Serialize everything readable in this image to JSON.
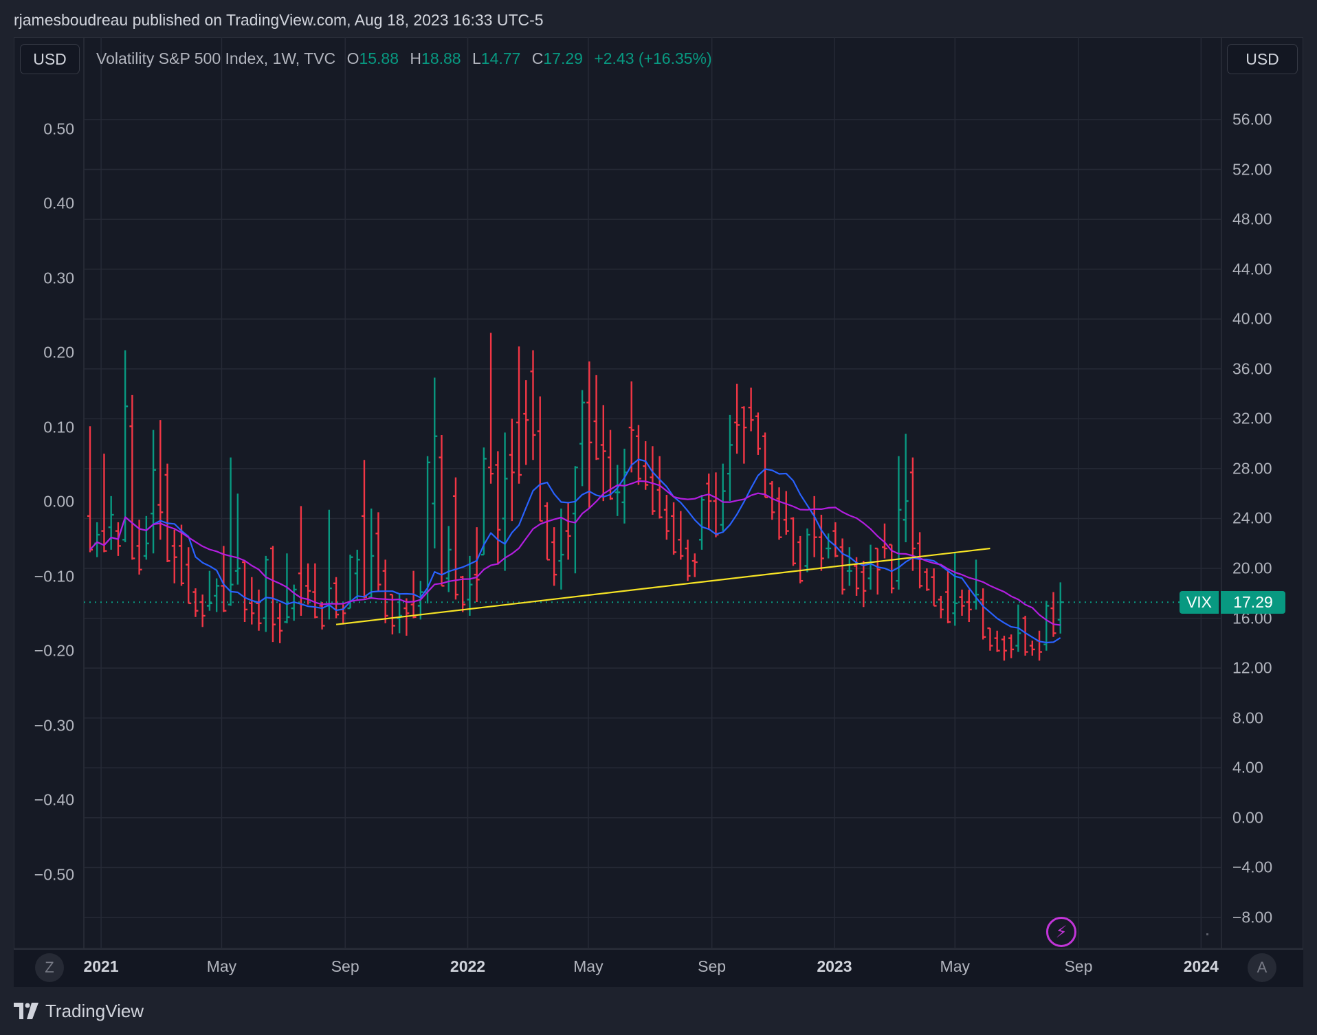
{
  "published": "rjamesboudreau published on TradingView.com, Aug 18, 2023 16:33 UTC-5",
  "currency_left": "USD",
  "currency_right": "USD",
  "legend": {
    "symbol": "Volatility S&P 500 Index, 1W, TVC",
    "o_label": "O",
    "o": "15.88",
    "h_label": "H",
    "h": "18.88",
    "l_label": "L",
    "l": "14.77",
    "c_label": "C",
    "c": "17.29",
    "change": "+2.43 (+16.35%)"
  },
  "last_price_tag": {
    "symbol": "VIX",
    "price": "17.29"
  },
  "buttons": {
    "zoom": "Z",
    "auto": "A"
  },
  "logo": "TradingView",
  "colors": {
    "up": "#089981",
    "down": "#f23645",
    "ma_fast": "#2962ff",
    "ma_slow": "#b31ee0",
    "trendline": "#f7e425",
    "grid": "#262a36"
  },
  "chart_data": {
    "type": "ohlc",
    "title": "Volatility S&P 500 Index, 1W, TVC",
    "interval": "1W",
    "first_bar_date": "2020-12-21",
    "ohlc": [
      [
        24.2,
        31.4,
        21.3,
        21.5
      ],
      [
        22.0,
        23.7,
        20.9,
        22.7
      ],
      [
        23.0,
        29.2,
        21.3,
        21.4
      ],
      [
        23.3,
        25.8,
        21.5,
        24.3
      ],
      [
        23.0,
        23.7,
        21.0,
        21.8
      ],
      [
        22.3,
        37.5,
        22.1,
        33.0
      ],
      [
        31.4,
        33.9,
        20.7,
        20.8
      ],
      [
        21.8,
        23.9,
        19.5,
        19.9
      ],
      [
        21.0,
        24.2,
        20.7,
        22.0
      ],
      [
        24.4,
        31.1,
        21.2,
        27.9
      ],
      [
        25.1,
        31.9,
        22.3,
        24.5
      ],
      [
        27.5,
        28.4,
        20.5,
        20.6
      ],
      [
        21.8,
        23.1,
        18.8,
        20.9
      ],
      [
        21.8,
        23.5,
        18.6,
        18.8
      ],
      [
        20.3,
        21.7,
        17.2,
        17.2
      ],
      [
        18.1,
        18.4,
        16.1,
        16.6
      ],
      [
        17.3,
        17.9,
        15.3,
        16.2
      ],
      [
        17.0,
        19.8,
        16.6,
        17.2
      ],
      [
        17.8,
        19.2,
        16.5,
        18.6
      ],
      [
        18.6,
        21.8,
        16.5,
        16.6
      ],
      [
        17.1,
        28.9,
        17.0,
        18.7
      ],
      [
        19.8,
        26.0,
        18.7,
        20.0
      ],
      [
        20.5,
        20.5,
        15.7,
        16.7
      ],
      [
        17.2,
        19.3,
        15.5,
        16.4
      ],
      [
        17.2,
        18.3,
        15.0,
        15.6
      ],
      [
        16.0,
        21.0,
        14.9,
        20.7
      ],
      [
        21.6,
        21.8,
        14.1,
        15.5
      ],
      [
        16.0,
        17.2,
        14.0,
        15.0
      ],
      [
        15.7,
        21.2,
        15.6,
        16.1
      ],
      [
        16.8,
        18.7,
        15.8,
        18.3
      ],
      [
        19.6,
        25.0,
        16.2,
        17.1
      ],
      [
        18.6,
        20.4,
        17.1,
        18.2
      ],
      [
        18.1,
        20.4,
        16.0,
        16.1
      ],
      [
        17.0,
        17.3,
        15.1,
        15.4
      ],
      [
        17.0,
        24.7,
        15.9,
        18.4
      ],
      [
        18.8,
        19.3,
        16.0,
        16.3
      ],
      [
        16.7,
        17.1,
        15.5,
        16.4
      ],
      [
        16.8,
        21.1,
        16.8,
        20.9
      ],
      [
        19.6,
        21.5,
        17.5,
        20.7
      ],
      [
        24.2,
        28.7,
        17.6,
        17.7
      ],
      [
        17.7,
        24.8,
        17.6,
        21.0
      ],
      [
        22.8,
        24.5,
        18.1,
        18.7
      ],
      [
        19.8,
        20.7,
        15.6,
        16.2
      ],
      [
        17.9,
        17.9,
        14.7,
        15.4
      ],
      [
        16.0,
        18.0,
        14.8,
        16.2
      ],
      [
        16.8,
        17.6,
        14.6,
        16.4
      ],
      [
        17.1,
        19.8,
        16.0,
        16.1
      ],
      [
        17.0,
        19.0,
        15.9,
        18.1
      ],
      [
        18.1,
        29.0,
        17.2,
        28.5
      ],
      [
        25.2,
        35.3,
        21.6,
        30.6
      ],
      [
        28.9,
        30.7,
        18.6,
        18.6
      ],
      [
        19.2,
        23.4,
        18.1,
        21.5
      ],
      [
        25.8,
        27.3,
        17.5,
        17.9
      ],
      [
        19.3,
        19.4,
        16.5,
        17.1
      ],
      [
        17.5,
        21.0,
        16.2,
        18.7
      ],
      [
        19.5,
        23.3,
        17.3,
        19.1
      ],
      [
        21.1,
        29.7,
        21.1,
        28.8
      ],
      [
        28.1,
        38.9,
        26.8,
        27.6
      ],
      [
        28.3,
        29.4,
        20.3,
        23.1
      ],
      [
        24.0,
        30.9,
        19.8,
        27.2
      ],
      [
        29.1,
        32.0,
        23.8,
        27.7
      ],
      [
        31.7,
        37.8,
        26.8,
        27.5
      ],
      [
        32.4,
        35.1,
        28.3,
        31.9
      ],
      [
        35.8,
        37.5,
        28.7,
        30.7
      ],
      [
        31.0,
        33.8,
        23.8,
        23.8
      ],
      [
        25.0,
        25.3,
        20.7,
        20.7
      ],
      [
        22.1,
        23.3,
        18.6,
        19.5
      ],
      [
        20.6,
        24.8,
        18.3,
        21.1
      ],
      [
        23.0,
        25.3,
        20.7,
        22.6
      ],
      [
        24.4,
        28.2,
        19.6,
        28.1
      ],
      [
        30.0,
        34.3,
        26.6,
        33.3
      ],
      [
        33.3,
        36.6,
        24.8,
        30.1
      ],
      [
        31.8,
        35.5,
        28.7,
        28.8
      ],
      [
        29.9,
        33.1,
        25.4,
        29.4
      ],
      [
        28.9,
        31.1,
        25.5,
        25.6
      ],
      [
        26.1,
        28.3,
        24.2,
        26.1
      ],
      [
        25.3,
        29.6,
        23.6,
        27.7
      ],
      [
        31.3,
        35.0,
        27.7,
        31.1
      ],
      [
        30.6,
        31.5,
        26.7,
        27.2
      ],
      [
        28.2,
        30.2,
        26.3,
        26.7
      ],
      [
        27.3,
        29.8,
        24.3,
        24.6
      ],
      [
        26.3,
        29.0,
        24.0,
        24.1
      ],
      [
        24.7,
        25.9,
        22.3,
        23.0
      ],
      [
        24.2,
        25.3,
        21.1,
        21.3
      ],
      [
        22.3,
        24.6,
        20.7,
        21.0
      ],
      [
        21.6,
        22.3,
        19.0,
        19.4
      ],
      [
        20.6,
        21.2,
        19.3,
        20.5
      ],
      [
        22.3,
        25.9,
        21.5,
        25.5
      ],
      [
        26.8,
        27.6,
        23.1,
        25.4
      ],
      [
        25.4,
        27.7,
        22.5,
        22.7
      ],
      [
        23.5,
        28.4,
        23.0,
        26.2
      ],
      [
        27.6,
        32.3,
        25.4,
        29.9
      ],
      [
        31.7,
        34.8,
        29.2,
        31.5
      ],
      [
        32.9,
        33.0,
        28.4,
        31.3
      ],
      [
        32.9,
        34.5,
        31.0,
        31.9
      ],
      [
        32.2,
        32.5,
        29.1,
        29.6
      ],
      [
        30.6,
        30.9,
        25.7,
        25.7
      ],
      [
        26.8,
        27.0,
        23.9,
        24.5
      ],
      [
        25.6,
        26.5,
        22.3,
        22.5
      ],
      [
        23.9,
        26.2,
        22.7,
        23.0
      ],
      [
        24.0,
        24.1,
        20.2,
        20.4
      ],
      [
        22.1,
        22.6,
        18.8,
        19.0
      ],
      [
        20.2,
        23.2,
        19.7,
        22.7
      ],
      [
        24.4,
        25.8,
        20.9,
        22.5
      ],
      [
        22.5,
        24.3,
        19.8,
        20.8
      ],
      [
        21.6,
        22.8,
        20.8,
        21.6
      ],
      [
        23.0,
        23.7,
        20.9,
        21.0
      ],
      [
        21.7,
        22.4,
        17.9,
        18.3
      ],
      [
        19.8,
        21.7,
        18.6,
        19.8
      ],
      [
        20.2,
        20.9,
        17.8,
        18.4
      ],
      [
        19.7,
        20.6,
        16.9,
        18.2
      ],
      [
        19.2,
        21.9,
        18.3,
        20.5
      ],
      [
        21.6,
        21.6,
        17.9,
        19.9
      ],
      [
        21.7,
        23.6,
        20.8,
        21.6
      ],
      [
        21.9,
        21.9,
        18.0,
        18.4
      ],
      [
        19.0,
        29.0,
        18.3,
        24.7
      ],
      [
        23.9,
        30.8,
        22.1,
        25.4
      ],
      [
        27.7,
        28.9,
        19.8,
        21.6
      ],
      [
        22.0,
        22.9,
        18.4,
        18.6
      ],
      [
        19.7,
        20.0,
        18.2,
        18.3
      ],
      [
        19.3,
        20.0,
        17.0,
        17.0
      ],
      [
        17.5,
        17.8,
        16.0,
        16.7
      ],
      [
        18.1,
        19.8,
        15.6,
        15.7
      ],
      [
        16.4,
        21.3,
        15.4,
        17.2
      ],
      [
        17.7,
        18.3,
        16.2,
        17.0
      ],
      [
        17.3,
        18.3,
        15.7,
        16.7
      ],
      [
        17.3,
        20.7,
        16.7,
        17.9
      ],
      [
        17.5,
        18.4,
        14.3,
        14.5
      ],
      [
        15.2,
        15.2,
        13.4,
        13.8
      ],
      [
        14.4,
        15.0,
        13.3,
        13.4
      ],
      [
        14.3,
        14.6,
        12.6,
        13.4
      ],
      [
        14.4,
        14.7,
        12.8,
        13.5
      ],
      [
        13.8,
        17.1,
        13.3,
        14.8
      ],
      [
        16.0,
        16.2,
        13.0,
        13.3
      ],
      [
        13.8,
        14.2,
        13.0,
        13.5
      ],
      [
        14.2,
        15.0,
        12.6,
        13.3
      ],
      [
        13.9,
        17.4,
        13.4,
        17.0
      ],
      [
        16.8,
        18.1,
        14.5,
        14.8
      ],
      [
        15.88,
        18.88,
        14.77,
        17.29
      ]
    ],
    "moving_averages": [
      {
        "name": "MA 10",
        "period": 10,
        "source": "close"
      },
      {
        "name": "MA 20",
        "period": 20,
        "source": "close"
      }
    ],
    "trendline": {
      "from": {
        "bar": 35,
        "price": 15.5
      },
      "to": {
        "bar": 128,
        "price": 21.6
      }
    },
    "last_price_line": 17.29,
    "y_right": {
      "range": [
        -10,
        58
      ],
      "ticks": [
        "56.00",
        "52.00",
        "48.00",
        "44.00",
        "40.00",
        "36.00",
        "32.00",
        "28.00",
        "24.00",
        "20.00",
        "16.00",
        "12.00",
        "8.00",
        "4.00",
        "0.00",
        "−4.00",
        "−8.00"
      ],
      "tick_values": [
        56,
        52,
        48,
        44,
        40,
        36,
        32,
        28,
        24,
        20,
        16,
        12,
        8,
        4,
        0,
        -4,
        -8
      ]
    },
    "y_left": {
      "ticks": [
        "0.50",
        "0.40",
        "0.30",
        "0.20",
        "0.10",
        "0.00",
        "−0.10",
        "−0.20",
        "−0.30",
        "−0.40",
        "−0.50"
      ],
      "tick_values": [
        0.5,
        0.4,
        0.3,
        0.2,
        0.1,
        0,
        -0.1,
        -0.2,
        -0.3,
        -0.4,
        -0.5
      ]
    },
    "x_ticks": [
      {
        "label": "2021",
        "date": "2021-01-01",
        "bold": true
      },
      {
        "label": "May",
        "date": "2021-05-01",
        "bold": false
      },
      {
        "label": "Sep",
        "date": "2021-09-01",
        "bold": false
      },
      {
        "label": "2022",
        "date": "2022-01-01",
        "bold": true
      },
      {
        "label": "May",
        "date": "2022-05-01",
        "bold": false
      },
      {
        "label": "Sep",
        "date": "2022-09-01",
        "bold": false
      },
      {
        "label": "2023",
        "date": "2023-01-01",
        "bold": true
      },
      {
        "label": "May",
        "date": "2023-05-01",
        "bold": false
      },
      {
        "label": "Sep",
        "date": "2023-09-01",
        "bold": false
      },
      {
        "label": "2024",
        "date": "2024-01-01",
        "bold": true
      }
    ],
    "grid": true
  }
}
